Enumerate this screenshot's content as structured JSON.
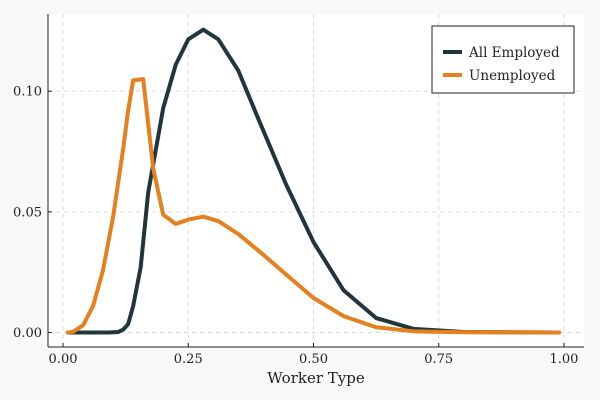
{
  "chart_data": {
    "type": "line",
    "title": "",
    "xlabel": "Worker Type",
    "ylabel": "",
    "xlim": [
      -0.03,
      1.04
    ],
    "ylim": [
      -0.006,
      0.132
    ],
    "x_ticks": [
      0.0,
      0.25,
      0.5,
      0.75,
      1.0
    ],
    "x_tick_labels": [
      "0.00",
      "0.25",
      "0.50",
      "0.75",
      "1.00"
    ],
    "y_ticks": [
      0.0,
      0.05,
      0.1
    ],
    "y_tick_labels": [
      "0.00",
      "0.05",
      "0.10"
    ],
    "grid": true,
    "legend_position": "top-right",
    "series": [
      {
        "name": "All Employed",
        "color": "#21353a",
        "points": [
          [
            0.01,
            0.0
          ],
          [
            0.05,
            0.0
          ],
          [
            0.09,
            0.0
          ],
          [
            0.11,
            0.0002
          ],
          [
            0.12,
            0.0012
          ],
          [
            0.13,
            0.0035
          ],
          [
            0.14,
            0.011
          ],
          [
            0.155,
            0.027
          ],
          [
            0.17,
            0.058
          ],
          [
            0.2,
            0.093
          ],
          [
            0.225,
            0.111
          ],
          [
            0.25,
            0.1215
          ],
          [
            0.28,
            0.1255
          ],
          [
            0.31,
            0.1215
          ],
          [
            0.35,
            0.1085
          ],
          [
            0.39,
            0.0885
          ],
          [
            0.445,
            0.0615
          ],
          [
            0.5,
            0.0375
          ],
          [
            0.56,
            0.0175
          ],
          [
            0.625,
            0.006
          ],
          [
            0.7,
            0.0015
          ],
          [
            0.8,
            0.0002
          ],
          [
            0.99,
            0.0
          ]
        ]
      },
      {
        "name": "Unemployed",
        "color": "#e67f1e",
        "points": [
          [
            0.01,
            0.0
          ],
          [
            0.02,
            0.0003
          ],
          [
            0.04,
            0.003
          ],
          [
            0.06,
            0.011
          ],
          [
            0.08,
            0.026
          ],
          [
            0.1,
            0.048
          ],
          [
            0.12,
            0.076
          ],
          [
            0.13,
            0.092
          ],
          [
            0.14,
            0.1045
          ],
          [
            0.16,
            0.105
          ],
          [
            0.18,
            0.068
          ],
          [
            0.2,
            0.0488
          ],
          [
            0.225,
            0.045
          ],
          [
            0.25,
            0.0468
          ],
          [
            0.28,
            0.048
          ],
          [
            0.31,
            0.0462
          ],
          [
            0.35,
            0.0408
          ],
          [
            0.4,
            0.0322
          ],
          [
            0.45,
            0.0232
          ],
          [
            0.5,
            0.0143
          ],
          [
            0.56,
            0.0068
          ],
          [
            0.625,
            0.0022
          ],
          [
            0.7,
            0.0005
          ],
          [
            0.8,
            0.0001
          ],
          [
            0.99,
            0.0
          ]
        ]
      }
    ]
  }
}
